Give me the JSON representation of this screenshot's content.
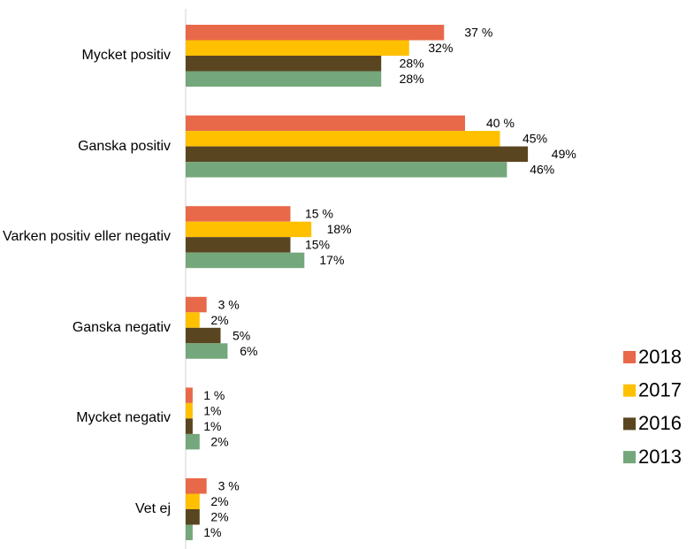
{
  "chart_data": {
    "type": "bar",
    "orientation": "horizontal",
    "categories": [
      "Mycket positiv",
      "Ganska positiv",
      "Varken positiv eller negativ",
      "Ganska negativ",
      "Mycket negativ",
      "Vet ej"
    ],
    "series": [
      {
        "name": "2018",
        "color": "#e8694a",
        "values": [
          37,
          40,
          15,
          3,
          1,
          3
        ],
        "value_labels": [
          "37 %",
          "40 %",
          "15 %",
          "3 %",
          "1 %",
          "3 %"
        ]
      },
      {
        "name": "2017",
        "color": "#ffc000",
        "values": [
          32,
          45,
          18,
          2,
          1,
          2
        ],
        "value_labels": [
          "32%",
          "45%",
          "18%",
          "2%",
          "1%",
          "2%"
        ]
      },
      {
        "name": "2016",
        "color": "#5a4521",
        "values": [
          28,
          49,
          15,
          5,
          1,
          2
        ],
        "value_labels": [
          "28%",
          "49%",
          "15%",
          "5%",
          "1%",
          "2%"
        ]
      },
      {
        "name": "2013",
        "color": "#74a77b",
        "values": [
          28,
          46,
          17,
          6,
          2,
          1
        ],
        "value_labels": [
          "28%",
          "46%",
          "17%",
          "6%",
          "2%",
          "1%"
        ]
      }
    ],
    "legend": "right"
  }
}
